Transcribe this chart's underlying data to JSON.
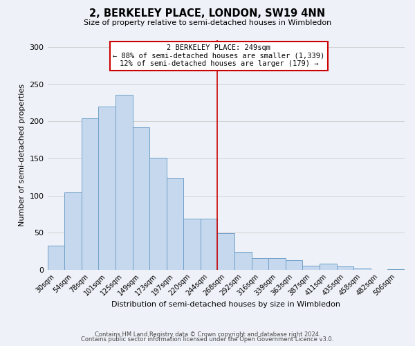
{
  "title": "2, BERKELEY PLACE, LONDON, SW19 4NN",
  "subtitle": "Size of property relative to semi-detached houses in Wimbledon",
  "xlabel": "Distribution of semi-detached houses by size in Wimbledon",
  "ylabel": "Number of semi-detached properties",
  "footer_line1": "Contains HM Land Registry data © Crown copyright and database right 2024.",
  "footer_line2": "Contains public sector information licensed under the Open Government Licence v3.0.",
  "categories": [
    "30sqm",
    "54sqm",
    "78sqm",
    "101sqm",
    "125sqm",
    "149sqm",
    "173sqm",
    "197sqm",
    "220sqm",
    "244sqm",
    "268sqm",
    "292sqm",
    "316sqm",
    "339sqm",
    "363sqm",
    "387sqm",
    "411sqm",
    "435sqm",
    "458sqm",
    "482sqm",
    "506sqm"
  ],
  "values": [
    32,
    104,
    204,
    220,
    236,
    192,
    151,
    124,
    69,
    69,
    49,
    24,
    16,
    16,
    13,
    5,
    8,
    4,
    2,
    0,
    1
  ],
  "bar_color": "#c5d8ee",
  "bar_edge_color": "#6fa0c8",
  "background_color": "#eef2f8",
  "grid_color": "#d0d0d0",
  "vline_x": 9.5,
  "vline_color": "#cc0000",
  "annotation_title": "2 BERKELEY PLACE: 249sqm",
  "annotation_line1": "← 88% of semi-detached houses are smaller (1,339)",
  "annotation_line2": "12% of semi-detached houses are larger (179) →",
  "annotation_box_color": "#ffffff",
  "annotation_border_color": "#cc0000",
  "ylim": [
    0,
    310
  ],
  "yticks": [
    0,
    50,
    100,
    150,
    200,
    250,
    300
  ]
}
